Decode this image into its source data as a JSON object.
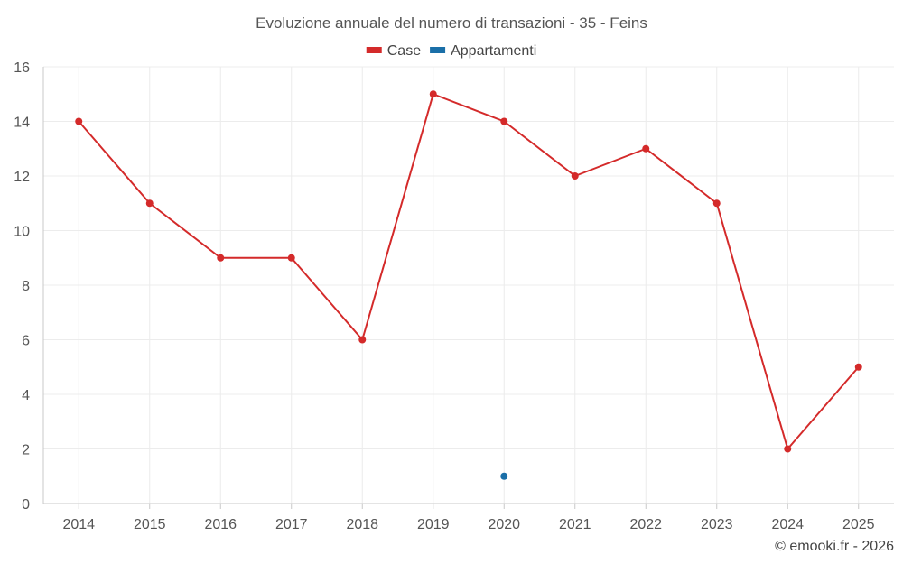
{
  "chart_data": {
    "type": "line",
    "title": "Evoluzione annuale del numero di transazioni - 35 - Feins",
    "xlabel": "",
    "ylabel": "",
    "categories": [
      "2014",
      "2015",
      "2016",
      "2017",
      "2018",
      "2019",
      "2020",
      "2021",
      "2022",
      "2023",
      "2024",
      "2025"
    ],
    "ylim": [
      0,
      16
    ],
    "yticks": [
      0,
      2,
      4,
      6,
      8,
      10,
      12,
      14,
      16
    ],
    "grid": true,
    "legend_position": "top-center",
    "series": [
      {
        "name": "Case",
        "color": "#d42a2a",
        "values": [
          14,
          11,
          9,
          9,
          6,
          15,
          14,
          12,
          13,
          11,
          2,
          5
        ]
      },
      {
        "name": "Appartamenti",
        "color": "#1a6fa8",
        "values": [
          null,
          null,
          null,
          null,
          null,
          null,
          1,
          null,
          null,
          null,
          null,
          null
        ]
      }
    ]
  },
  "credit": "© emooki.fr - 2026"
}
